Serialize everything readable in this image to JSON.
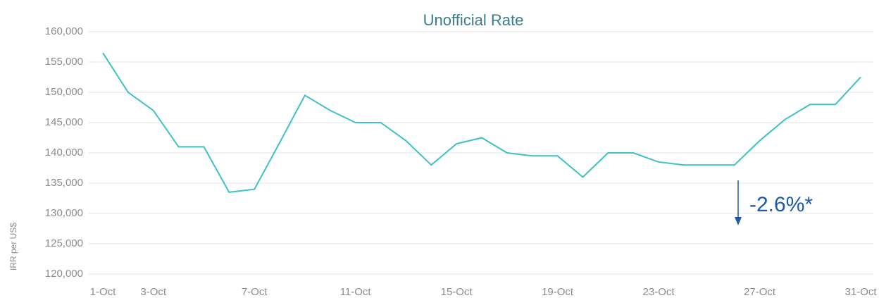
{
  "chart_data": {
    "type": "line",
    "title": "Unofficial Rate",
    "y_label": "IRR per US$",
    "annotation": "-2.6%*",
    "categories": [
      "1-Oct",
      null,
      "3-Oct",
      null,
      null,
      null,
      "7-Oct",
      null,
      null,
      null,
      "11-Oct",
      null,
      null,
      null,
      "15-Oct",
      null,
      null,
      null,
      "19-Oct",
      null,
      null,
      null,
      "23-Oct",
      null,
      null,
      null,
      "27-Oct",
      null,
      null,
      null,
      "31-Oct"
    ],
    "values": [
      156500,
      150000,
      147000,
      141000,
      141000,
      133500,
      134000,
      141700,
      149500,
      147000,
      145000,
      145000,
      142000,
      138000,
      141500,
      142500,
      140000,
      139500,
      139500,
      136000,
      140000,
      140000,
      138500,
      138000,
      138000,
      138000,
      142000,
      145500,
      148000,
      148000,
      152500
    ],
    "color": "#3fc1c9",
    "ylim": [
      120000,
      160000
    ],
    "yticks": [
      {
        "value": 120000,
        "label": "120,000"
      },
      {
        "value": 125000,
        "label": "125,000"
      },
      {
        "value": 130000,
        "label": "130,000"
      },
      {
        "value": 135000,
        "label": "135,000"
      },
      {
        "value": 140000,
        "label": "140,000"
      },
      {
        "value": 145000,
        "label": "145,000"
      },
      {
        "value": 150000,
        "label": "150,000"
      },
      {
        "value": 155000,
        "label": "155,000"
      },
      {
        "value": 160000,
        "label": "160,000"
      }
    ],
    "grid": true
  }
}
